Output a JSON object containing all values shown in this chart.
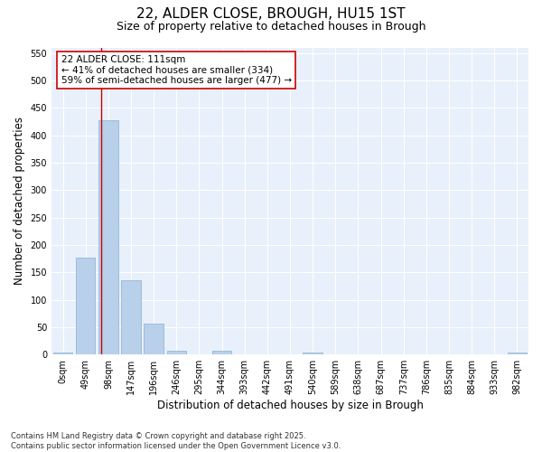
{
  "title1": "22, ALDER CLOSE, BROUGH, HU15 1ST",
  "title2": "Size of property relative to detached houses in Brough",
  "xlabel": "Distribution of detached houses by size in Brough",
  "ylabel": "Number of detached properties",
  "categories": [
    "0sqm",
    "49sqm",
    "98sqm",
    "147sqm",
    "196sqm",
    "246sqm",
    "295sqm",
    "344sqm",
    "393sqm",
    "442sqm",
    "491sqm",
    "540sqm",
    "589sqm",
    "638sqm",
    "687sqm",
    "737sqm",
    "786sqm",
    "835sqm",
    "884sqm",
    "933sqm",
    "982sqm"
  ],
  "values": [
    3,
    177,
    427,
    135,
    57,
    7,
    0,
    7,
    0,
    0,
    0,
    3,
    0,
    0,
    0,
    0,
    0,
    0,
    0,
    0,
    3
  ],
  "bar_color": "#b8d0ea",
  "bar_edge_color": "#8ab0d0",
  "vline_x": 1.7,
  "vline_color": "#cc0000",
  "annotation_text": "22 ALDER CLOSE: 111sqm\n← 41% of detached houses are smaller (334)\n59% of semi-detached houses are larger (477) →",
  "annotation_box_facecolor": "#ffffff",
  "annotation_box_edgecolor": "#cc0000",
  "ylim": [
    0,
    560
  ],
  "yticks": [
    0,
    50,
    100,
    150,
    200,
    250,
    300,
    350,
    400,
    450,
    500,
    550
  ],
  "footer": "Contains HM Land Registry data © Crown copyright and database right 2025.\nContains public sector information licensed under the Open Government Licence v3.0.",
  "bg_color": "#e8f0fb",
  "grid_color": "#ffffff",
  "title1_fontsize": 11,
  "title2_fontsize": 9,
  "axis_label_fontsize": 8.5,
  "tick_fontsize": 7,
  "annotation_fontsize": 7.5,
  "footer_fontsize": 6
}
